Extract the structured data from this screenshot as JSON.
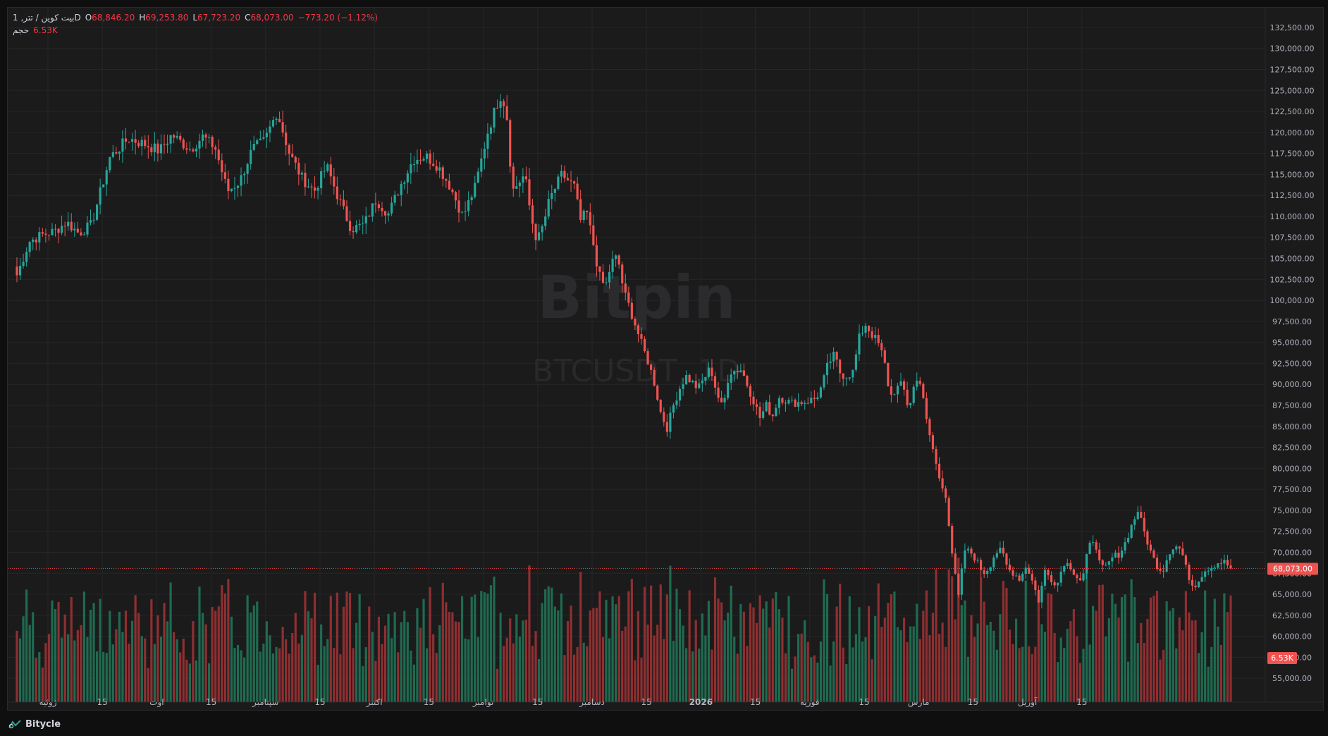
{
  "legend": {
    "symbol": "بیت کوین / تتر, 1D",
    "o_label": "O",
    "o_value": "68,846.20",
    "h_label": "H",
    "h_value": "69,253.80",
    "l_label": "L",
    "l_value": "67,723.20",
    "c_label": "C",
    "c_value": "68,073.00",
    "change": "−773.20 (−1.12%)",
    "volume_label": "حجم",
    "volume_value": "6.53K"
  },
  "watermark": {
    "line1": "Bitpin",
    "line2": "BTCUSDT, 1D"
  },
  "footer": {
    "brand": "Bitycle"
  },
  "colors": {
    "up": "#26a69a",
    "down": "#ef5350",
    "up_vol": "#1f6b50",
    "down_vol": "#8f2f31",
    "background": "#1b1b1c",
    "grid": "#262628",
    "text": "#b2b5be"
  },
  "chart_data": {
    "type": "candlestick",
    "title": "",
    "ylim": [
      53000,
      133500
    ],
    "y_ticks": [
      "132,500.00",
      "130,000.00",
      "127,500.00",
      "125,000.00",
      "122,500.00",
      "120,000.00",
      "117,500.00",
      "115,000.00",
      "112,500.00",
      "110,000.00",
      "107,500.00",
      "105,000.00",
      "102,500.00",
      "100,000.00",
      "97,500.00",
      "95,000.00",
      "92,500.00",
      "90,000.00",
      "87,500.00",
      "85,000.00",
      "82,500.00",
      "80,000.00",
      "77,500.00",
      "75,000.00",
      "72,500.00",
      "70,000.00",
      "67,500.00",
      "65,000.00",
      "62,500.00",
      "60,000.00",
      "57,500.00",
      "55,000.00"
    ],
    "x_ticks": [
      "ژوئیه",
      "15",
      "اوت",
      "15",
      "سپتامبر",
      "15",
      "اکتبر",
      "15",
      "نوامبر",
      "15",
      "دسامبر",
      "15",
      "2026",
      "15",
      "فوریه",
      "15",
      "مارس",
      "15",
      "آوریل",
      "15"
    ],
    "last_price_label": "68,073.00",
    "last_price": 68073,
    "last_volume_label": "6.53K",
    "close_path": [
      [
        0,
        103000
      ],
      [
        4,
        107000
      ],
      [
        8,
        107800
      ],
      [
        12,
        108200
      ],
      [
        16,
        109300
      ],
      [
        20,
        108000
      ],
      [
        24,
        109000
      ],
      [
        30,
        117000
      ],
      [
        36,
        119300
      ],
      [
        42,
        118500
      ],
      [
        46,
        117800
      ],
      [
        50,
        119700
      ],
      [
        56,
        118000
      ],
      [
        60,
        119500
      ],
      [
        64,
        118200
      ],
      [
        68,
        113000
      ],
      [
        72,
        114200
      ],
      [
        76,
        118000
      ],
      [
        80,
        119000
      ],
      [
        84,
        122500
      ],
      [
        88,
        117500
      ],
      [
        92,
        114600
      ],
      [
        96,
        113000
      ],
      [
        100,
        116000
      ],
      [
        104,
        112000
      ],
      [
        108,
        108500
      ],
      [
        112,
        109000
      ],
      [
        116,
        112000
      ],
      [
        120,
        110300
      ],
      [
        124,
        113800
      ],
      [
        128,
        116800
      ],
      [
        132,
        117200
      ],
      [
        136,
        116000
      ],
      [
        140,
        113500
      ],
      [
        144,
        110000
      ],
      [
        148,
        113500
      ],
      [
        152,
        120000
      ],
      [
        156,
        124500
      ],
      [
        158,
        123000
      ],
      [
        160,
        113000
      ],
      [
        164,
        115000
      ],
      [
        166,
        110000
      ],
      [
        168,
        107000
      ],
      [
        170,
        109000
      ],
      [
        172,
        112000
      ],
      [
        176,
        115000
      ],
      [
        180,
        113500
      ],
      [
        182,
        109500
      ],
      [
        184,
        110500
      ],
      [
        186,
        107000
      ],
      [
        188,
        103000
      ],
      [
        190,
        101500
      ],
      [
        192,
        104500
      ],
      [
        194,
        105200
      ],
      [
        196,
        101000
      ],
      [
        198,
        99000
      ],
      [
        202,
        94500
      ],
      [
        204,
        92500
      ],
      [
        206,
        90000
      ],
      [
        208,
        86500
      ],
      [
        210,
        84800
      ],
      [
        212,
        87500
      ],
      [
        214,
        89500
      ],
      [
        216,
        91000
      ],
      [
        220,
        89500
      ],
      [
        224,
        92000
      ],
      [
        226,
        89000
      ],
      [
        228,
        87000
      ],
      [
        230,
        91500
      ],
      [
        234,
        91800
      ],
      [
        236,
        89800
      ],
      [
        238,
        88000
      ],
      [
        240,
        86000
      ],
      [
        242,
        87500
      ],
      [
        244,
        86200
      ],
      [
        246,
        88500
      ],
      [
        250,
        87800
      ],
      [
        254,
        87900
      ],
      [
        258,
        88300
      ],
      [
        260,
        89800
      ],
      [
        262,
        92500
      ],
      [
        264,
        93500
      ],
      [
        266,
        91200
      ],
      [
        268,
        91000
      ],
      [
        270,
        91500
      ],
      [
        272,
        95500
      ],
      [
        274,
        97200
      ],
      [
        276,
        96000
      ],
      [
        278,
        95000
      ],
      [
        280,
        93000
      ],
      [
        282,
        88500
      ],
      [
        284,
        89500
      ],
      [
        286,
        90000
      ],
      [
        288,
        87000
      ],
      [
        290,
        90300
      ],
      [
        292,
        90500
      ],
      [
        294,
        84800
      ],
      [
        296,
        82000
      ],
      [
        298,
        78500
      ],
      [
        300,
        76800
      ],
      [
        302,
        70000
      ],
      [
        304,
        64500
      ],
      [
        306,
        70300
      ],
      [
        308,
        70000
      ],
      [
        310,
        69000
      ],
      [
        312,
        67500
      ],
      [
        314,
        68200
      ],
      [
        316,
        70000
      ],
      [
        318,
        70200
      ],
      [
        320,
        68000
      ],
      [
        322,
        67500
      ],
      [
        324,
        66800
      ],
      [
        326,
        68500
      ],
      [
        328,
        66500
      ],
      [
        330,
        64200
      ],
      [
        332,
        67800
      ],
      [
        334,
        66800
      ],
      [
        336,
        66200
      ],
      [
        338,
        68800
      ],
      [
        340,
        68500
      ],
      [
        342,
        67200
      ],
      [
        344,
        66500
      ],
      [
        346,
        70500
      ],
      [
        348,
        71800
      ],
      [
        350,
        68000
      ],
      [
        352,
        68300
      ],
      [
        354,
        69500
      ],
      [
        356,
        69800
      ],
      [
        358,
        71200
      ],
      [
        360,
        73200
      ],
      [
        362,
        75000
      ],
      [
        364,
        72500
      ],
      [
        366,
        70200
      ],
      [
        368,
        68500
      ],
      [
        370,
        67700
      ],
      [
        372,
        70000
      ],
      [
        374,
        70800
      ],
      [
        376,
        70300
      ],
      [
        378,
        67500
      ],
      [
        380,
        65800
      ],
      [
        382,
        67000
      ],
      [
        384,
        68000
      ],
      [
        386,
        68300
      ],
      [
        388,
        68800
      ],
      [
        390,
        68846
      ],
      [
        392,
        68073
      ]
    ],
    "n_bars": 380
  }
}
